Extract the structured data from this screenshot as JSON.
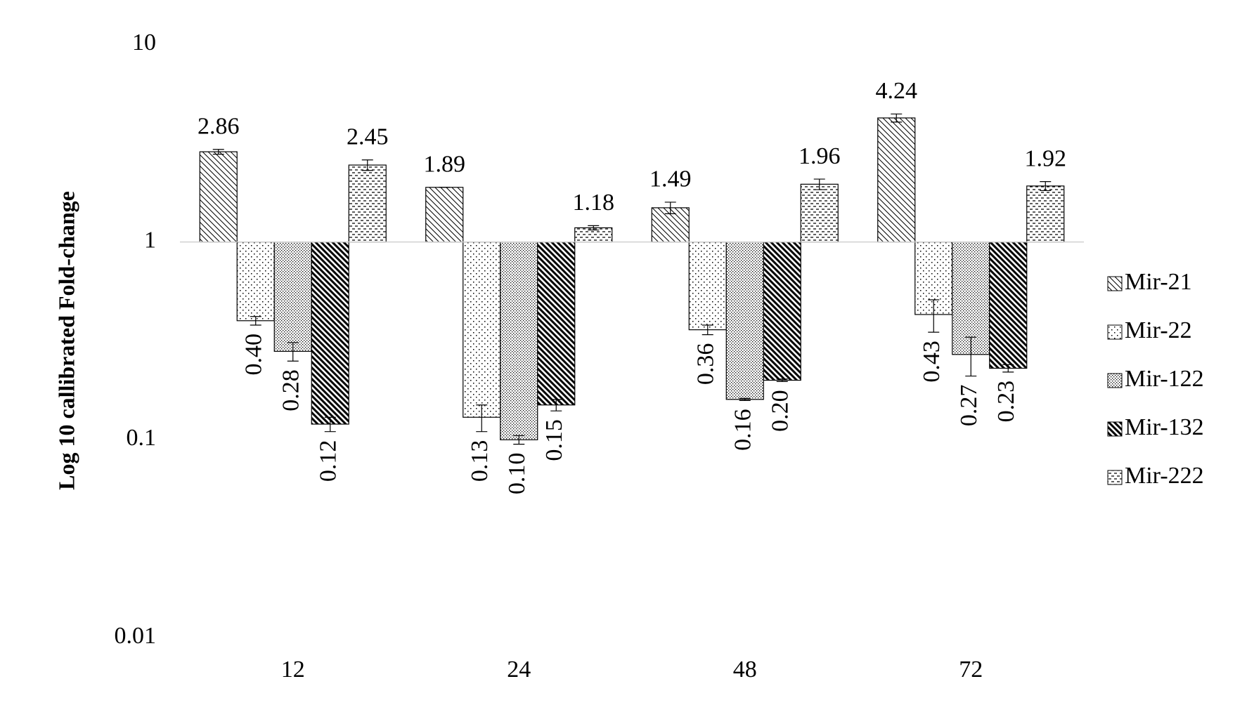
{
  "chart_data": {
    "type": "bar",
    "y_label": "Log 10 callibrated Fold-change",
    "log_y": true,
    "ylim": [
      0.01,
      10
    ],
    "yticks": [
      0.01,
      0.1,
      1,
      10
    ],
    "categories": [
      "12",
      "24",
      "48",
      "72"
    ],
    "series": [
      {
        "name": "Mir-21",
        "color": "#000000",
        "pattern": "diagonal-light",
        "values": [
          2.86,
          1.89,
          1.49,
          4.24
        ],
        "value_labels": [
          "2.86",
          "1.89",
          "1.49",
          "4.24"
        ],
        "errors": [
          0.08,
          0,
          0.1,
          0.2
        ]
      },
      {
        "name": "Mir-22",
        "color": "#000000",
        "pattern": "dots-sparse",
        "values": [
          0.4,
          0.13,
          0.36,
          0.43
        ],
        "value_labels": [
          "0.40",
          "0.13",
          "0.36",
          "0.43"
        ],
        "errors": [
          0.02,
          0.02,
          0.02,
          0.08
        ]
      },
      {
        "name": "Mir-122",
        "color": "#000000",
        "pattern": "dots-dense",
        "values": [
          0.28,
          0.1,
          0.16,
          0.27
        ],
        "value_labels": [
          "0.28",
          "0.10",
          "0.16",
          "0.27"
        ],
        "errors": [
          0.03,
          0.005,
          0.002,
          0.06
        ]
      },
      {
        "name": "Mir-132",
        "color": "#000000",
        "pattern": "diagonal-dark",
        "values": [
          0.12,
          0.15,
          0.2,
          0.23
        ],
        "value_labels": [
          "0.12",
          "0.15",
          "0.20",
          "0.23"
        ],
        "errors": [
          0.01,
          0.01,
          0.003,
          0.01
        ]
      },
      {
        "name": "Mir-222",
        "color": "#000000",
        "pattern": "dashes",
        "values": [
          2.45,
          1.18,
          1.96,
          1.92
        ],
        "value_labels": [
          "2.45",
          "1.18",
          "1.96",
          "1.92"
        ],
        "errors": [
          0.15,
          0.03,
          0.12,
          0.1
        ]
      }
    ]
  }
}
